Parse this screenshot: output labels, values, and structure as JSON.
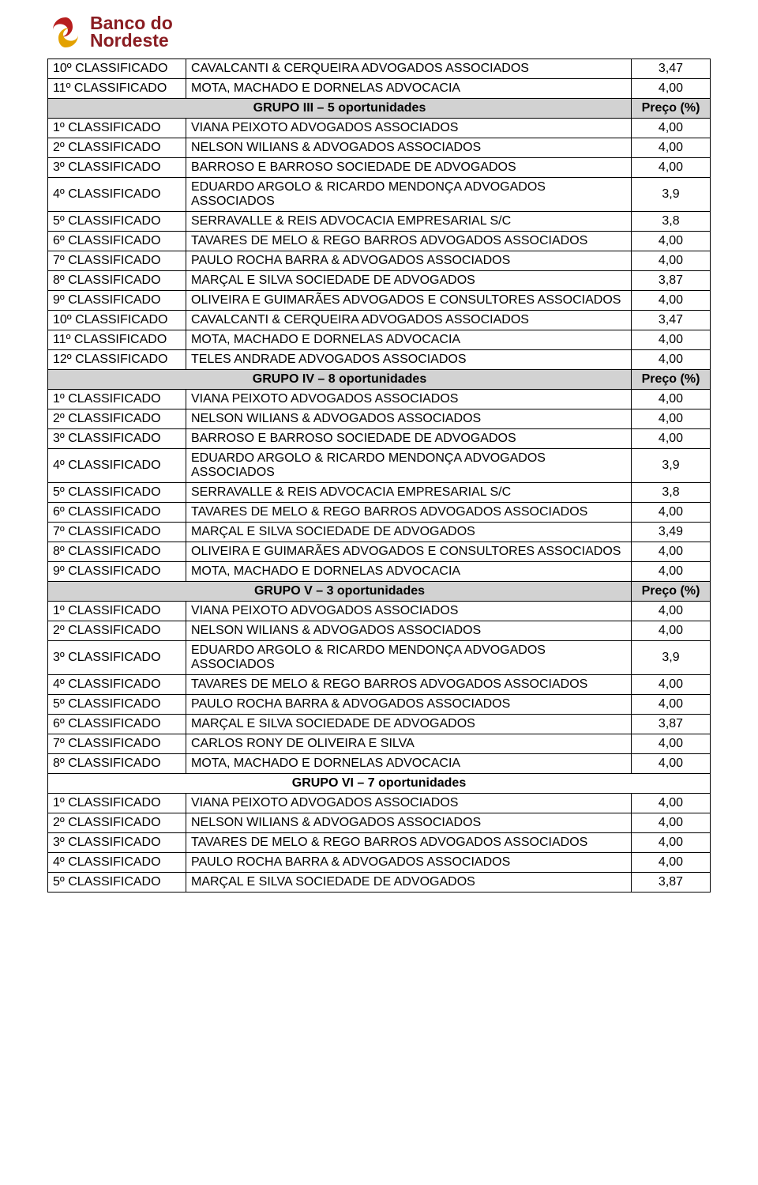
{
  "logo": {
    "line1": "Banco do",
    "line2": "Nordeste",
    "swirl_red": "#b71e1e",
    "swirl_yellow": "#e3a100",
    "text_color": "#8a1d22"
  },
  "table": {
    "group_bg": "#d2d2d2",
    "price_header": "Preço (%)",
    "border_color": "#000000",
    "font_size": 16
  },
  "rows": [
    {
      "t": "row",
      "rank": "10º CLASSIFICADO",
      "name": "CAVALCANTI & CERQUEIRA ADVOGADOS ASSOCIADOS",
      "price": "3,47"
    },
    {
      "t": "row",
      "rank": "11º CLASSIFICADO",
      "name": "MOTA, MACHADO E DORNELAS ADVOCACIA",
      "price": "4,00"
    },
    {
      "t": "group",
      "title": "GRUPO III – 5 oportunidades",
      "has_price_header": true
    },
    {
      "t": "row",
      "rank": "1º CLASSIFICADO",
      "name": "VIANA PEIXOTO ADVOGADOS ASSOCIADOS",
      "price": "4,00"
    },
    {
      "t": "row",
      "rank": "2º CLASSIFICADO",
      "name": "NELSON WILIANS & ADVOGADOS ASSOCIADOS",
      "price": "4,00"
    },
    {
      "t": "row",
      "rank": "3º CLASSIFICADO",
      "name": "BARROSO E BARROSO SOCIEDADE DE ADVOGADOS",
      "price": "4,00"
    },
    {
      "t": "row",
      "rank": "4º CLASSIFICADO",
      "name": "EDUARDO ARGOLO & RICARDO MENDONÇA ADVOGADOS ASSOCIADOS",
      "price": "3,9"
    },
    {
      "t": "row",
      "rank": "5º CLASSIFICADO",
      "name": "SERRAVALLE & REIS ADVOCACIA EMPRESARIAL S/C",
      "price": "3,8"
    },
    {
      "t": "row",
      "rank": "6º CLASSIFICADO",
      "name": "TAVARES DE MELO & REGO BARROS ADVOGADOS ASSOCIADOS",
      "price": "4,00"
    },
    {
      "t": "row",
      "rank": "7º CLASSIFICADO",
      "name": "PAULO ROCHA BARRA & ADVOGADOS ASSOCIADOS",
      "price": "4,00"
    },
    {
      "t": "row",
      "rank": "8º CLASSIFICADO",
      "name": "MARÇAL E SILVA SOCIEDADE DE ADVOGADOS",
      "price": "3,87"
    },
    {
      "t": "row",
      "rank": "9º CLASSIFICADO",
      "name": "OLIVEIRA E GUIMARÃES ADVOGADOS E CONSULTORES ASSOCIADOS",
      "price": "4,00"
    },
    {
      "t": "row",
      "rank": "10º CLASSIFICADO",
      "name": "CAVALCANTI & CERQUEIRA ADVOGADOS ASSOCIADOS",
      "price": "3,47"
    },
    {
      "t": "row",
      "rank": "11º CLASSIFICADO",
      "name": "MOTA, MACHADO E DORNELAS ADVOCACIA",
      "price": "4,00"
    },
    {
      "t": "row",
      "rank": "12º CLASSIFICADO",
      "name": "TELES ANDRADE ADVOGADOS ASSOCIADOS",
      "price": "4,00"
    },
    {
      "t": "group",
      "title": "GRUPO IV – 8 oportunidades",
      "has_price_header": true
    },
    {
      "t": "row",
      "rank": "1º CLASSIFICADO",
      "name": "VIANA PEIXOTO ADVOGADOS ASSOCIADOS",
      "price": "4,00"
    },
    {
      "t": "row",
      "rank": "2º CLASSIFICADO",
      "name": "NELSON WILIANS & ADVOGADOS ASSOCIADOS",
      "price": "4,00"
    },
    {
      "t": "row",
      "rank": "3º CLASSIFICADO",
      "name": "BARROSO E BARROSO SOCIEDADE DE ADVOGADOS",
      "price": "4,00"
    },
    {
      "t": "row",
      "rank": "4º CLASSIFICADO",
      "name": "EDUARDO ARGOLO & RICARDO MENDONÇA ADVOGADOS ASSOCIADOS",
      "price": "3,9"
    },
    {
      "t": "row",
      "rank": "5º CLASSIFICADO",
      "name": "SERRAVALLE & REIS ADVOCACIA EMPRESARIAL S/C",
      "price": "3,8"
    },
    {
      "t": "row",
      "rank": "6º CLASSIFICADO",
      "name": "TAVARES DE MELO & REGO BARROS ADVOGADOS ASSOCIADOS",
      "price": "4,00"
    },
    {
      "t": "row",
      "rank": "7º CLASSIFICADO",
      "name": "MARÇAL E SILVA SOCIEDADE DE ADVOGADOS",
      "price": "3,49"
    },
    {
      "t": "row",
      "rank": "8º CLASSIFICADO",
      "name": "OLIVEIRA E GUIMARÃES ADVOGADOS E CONSULTORES ASSOCIADOS",
      "price": "4,00"
    },
    {
      "t": "row",
      "rank": "9º CLASSIFICADO",
      "name": "MOTA, MACHADO E DORNELAS ADVOCACIA",
      "price": "4,00"
    },
    {
      "t": "group",
      "title": "GRUPO V – 3 oportunidades",
      "has_price_header": true
    },
    {
      "t": "row",
      "rank": "1º CLASSIFICADO",
      "name": "VIANA PEIXOTO ADVOGADOS ASSOCIADOS",
      "price": "4,00"
    },
    {
      "t": "row",
      "rank": "2º CLASSIFICADO",
      "name": "NELSON WILIANS & ADVOGADOS ASSOCIADOS",
      "price": "4,00"
    },
    {
      "t": "row",
      "rank": "3º CLASSIFICADO",
      "name": "EDUARDO ARGOLO & RICARDO MENDONÇA ADVOGADOS ASSOCIADOS",
      "price": "3,9"
    },
    {
      "t": "row",
      "rank": "4º CLASSIFICADO",
      "name": "TAVARES DE MELO & REGO BARROS ADVOGADOS ASSOCIADOS",
      "price": "4,00"
    },
    {
      "t": "row",
      "rank": "5º CLASSIFICADO",
      "name": "PAULO ROCHA BARRA & ADVOGADOS ASSOCIADOS",
      "price": "4,00"
    },
    {
      "t": "row",
      "rank": "6º CLASSIFICADO",
      "name": "MARÇAL E SILVA SOCIEDADE DE ADVOGADOS",
      "price": "3,87"
    },
    {
      "t": "row",
      "rank": "7º CLASSIFICADO",
      "name": "CARLOS RONY DE OLIVEIRA E SILVA",
      "price": "4,00"
    },
    {
      "t": "row",
      "rank": "8º CLASSIFICADO",
      "name": "MOTA, MACHADO E DORNELAS ADVOCACIA",
      "price": "4,00"
    },
    {
      "t": "group_plain",
      "title": "GRUPO VI – 7 oportunidades",
      "has_price_header": false
    },
    {
      "t": "row",
      "rank": "1º CLASSIFICADO",
      "name": "VIANA PEIXOTO ADVOGADOS ASSOCIADOS",
      "price": "4,00"
    },
    {
      "t": "row",
      "rank": "2º CLASSIFICADO",
      "name": "NELSON WILIANS & ADVOGADOS ASSOCIADOS",
      "price": "4,00"
    },
    {
      "t": "row",
      "rank": "3º CLASSIFICADO",
      "name": "TAVARES DE MELO & REGO BARROS ADVOGADOS ASSOCIADOS",
      "price": "4,00"
    },
    {
      "t": "row",
      "rank": "4º CLASSIFICADO",
      "name": "PAULO ROCHA BARRA & ADVOGADOS ASSOCIADOS",
      "price": "4,00"
    },
    {
      "t": "row",
      "rank": "5º CLASSIFICADO",
      "name": "MARÇAL E SILVA SOCIEDADE DE ADVOGADOS",
      "price": "3,87"
    }
  ]
}
